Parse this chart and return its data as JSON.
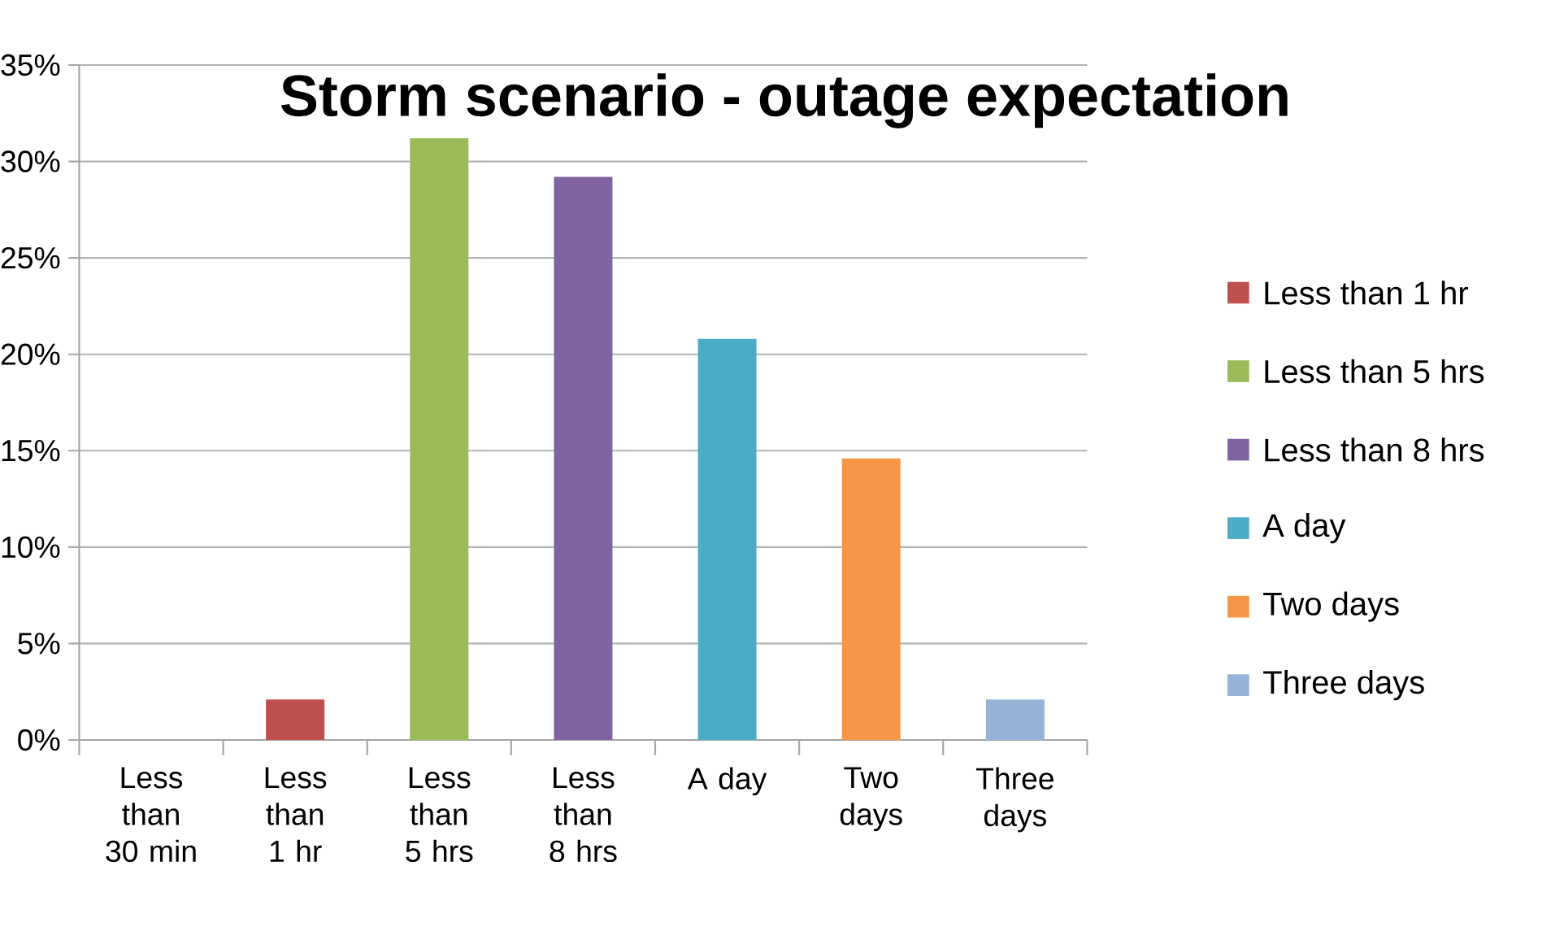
{
  "chart_data": {
    "type": "bar",
    "title": "Storm scenario - outage expectation",
    "categories": [
      "Less than 30 min",
      "Less than 1 hr",
      "Less than 5 hrs",
      "Less than 8 hrs",
      "A day",
      "Two days",
      "Three days"
    ],
    "series": [
      {
        "values": [
          0,
          null,
          null,
          null,
          null,
          null,
          null
        ]
      },
      {
        "name": "Less than 1 hr",
        "color": "#c0504d",
        "values": [
          null,
          2.1,
          null,
          null,
          null,
          null,
          null
        ]
      },
      {
        "name": "Less than 5 hrs",
        "color": "#9bbb59",
        "values": [
          null,
          null,
          31.2,
          null,
          null,
          null,
          null
        ]
      },
      {
        "name": "Less than 8 hrs",
        "color": "#8064a2",
        "values": [
          null,
          null,
          null,
          29.2,
          null,
          null,
          null
        ]
      },
      {
        "name": "A day",
        "color": "#4bacc6",
        "values": [
          null,
          null,
          null,
          null,
          20.8,
          null,
          null
        ]
      },
      {
        "name": "Two days",
        "color": "#f79646",
        "values": [
          null,
          null,
          null,
          null,
          null,
          14.6,
          null
        ]
      },
      {
        "name": "Three days",
        "color": "#95b3d7",
        "values": [
          null,
          null,
          null,
          null,
          null,
          null,
          2.1
        ]
      }
    ],
    "ylim": [
      0,
      35
    ],
    "yticks": [
      {
        "value": 0,
        "label": "0%"
      },
      {
        "value": 5,
        "label": "5%"
      },
      {
        "value": 10,
        "label": "10%"
      },
      {
        "value": 15,
        "label": "15%"
      },
      {
        "value": 20,
        "label": "20%"
      },
      {
        "value": 25,
        "label": "25%"
      },
      {
        "value": 30,
        "label": "30%"
      },
      {
        "value": 35,
        "label": "35%"
      }
    ],
    "grid": "y",
    "legend": "right"
  }
}
